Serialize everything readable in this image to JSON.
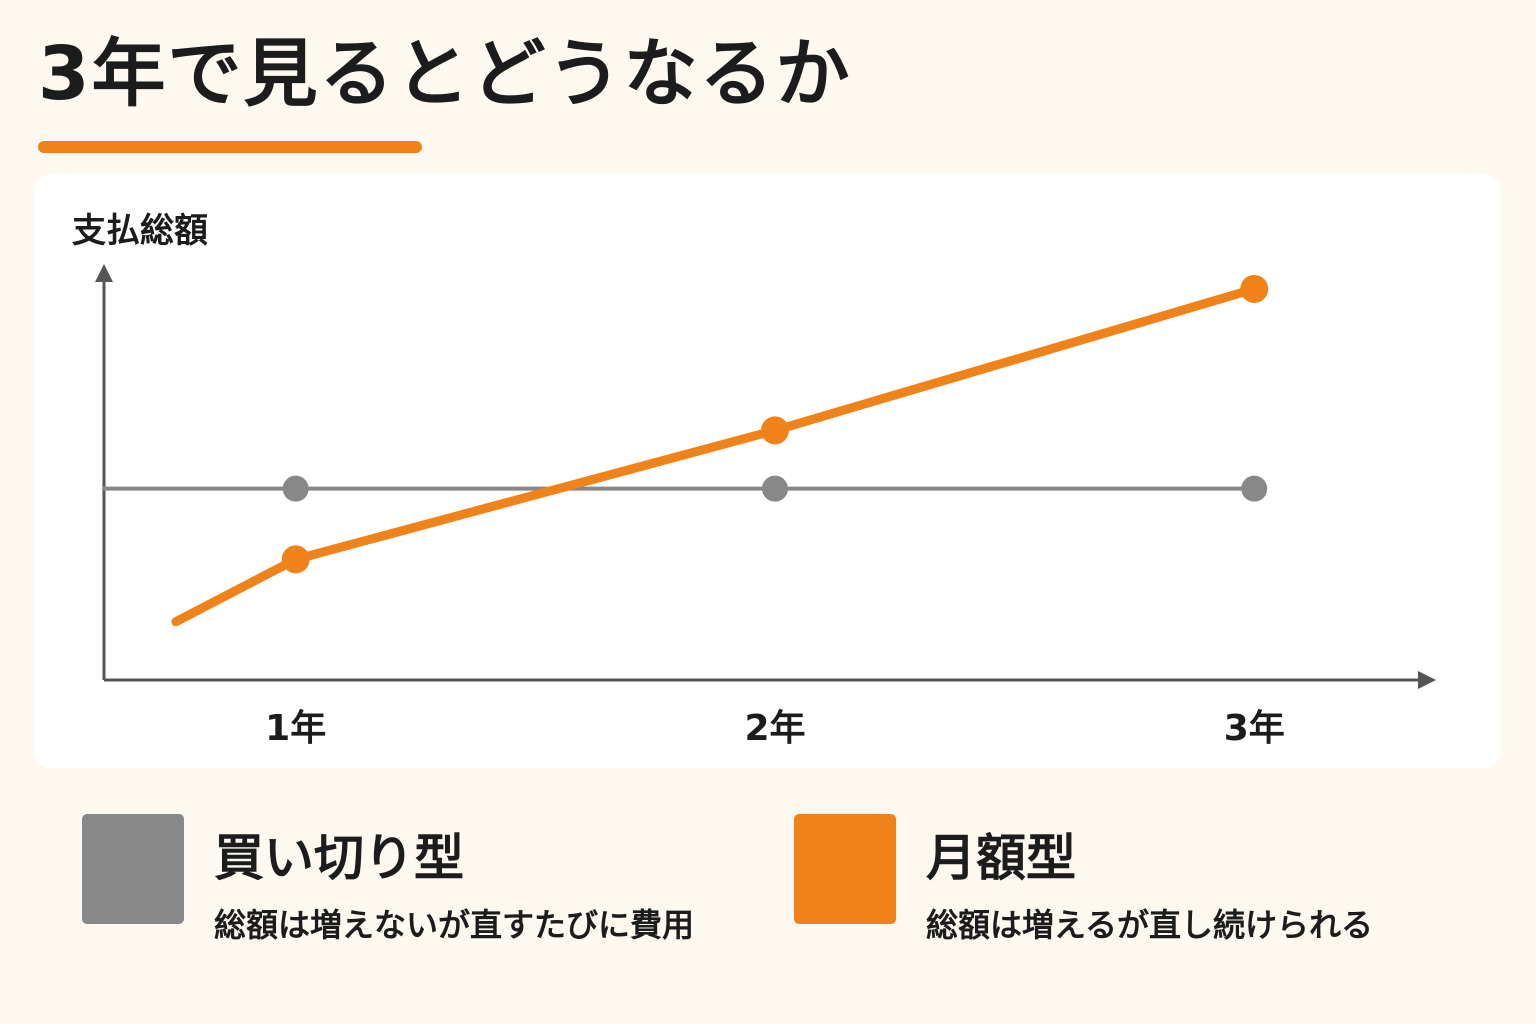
{
  "title": "3年で見るとどうなるか",
  "colors": {
    "accent": "#f0821a",
    "gray": "#888888",
    "axis": "#555555",
    "background": "#fdf9f0",
    "card": "#ffffff"
  },
  "chart_data": {
    "type": "line",
    "ylabel": "支払総額",
    "xlabel": "",
    "x_ticks": [
      "1年",
      "2年",
      "3年"
    ],
    "x_domain": [
      0.6,
      3.35
    ],
    "ylim": [
      0,
      100
    ],
    "grid": false,
    "series": [
      {
        "name": "買い切り型",
        "color": "#888888",
        "line_from_axis": true,
        "points": [
          {
            "x": 1,
            "y": 46
          },
          {
            "x": 2,
            "y": 46
          },
          {
            "x": 3,
            "y": 46
          }
        ]
      },
      {
        "name": "月額型",
        "color": "#f0821a",
        "line_start": {
          "x": 0.75,
          "y": 14
        },
        "points": [
          {
            "x": 1,
            "y": 29
          },
          {
            "x": 2,
            "y": 60
          },
          {
            "x": 3,
            "y": 94
          }
        ]
      }
    ]
  },
  "legend": [
    {
      "name": "買い切り型",
      "description": "総額は増えないが直すたびに費用",
      "color": "#888888"
    },
    {
      "name": "月額型",
      "description": "総額は増えるが直し続けられる",
      "color": "#f0821a"
    }
  ]
}
